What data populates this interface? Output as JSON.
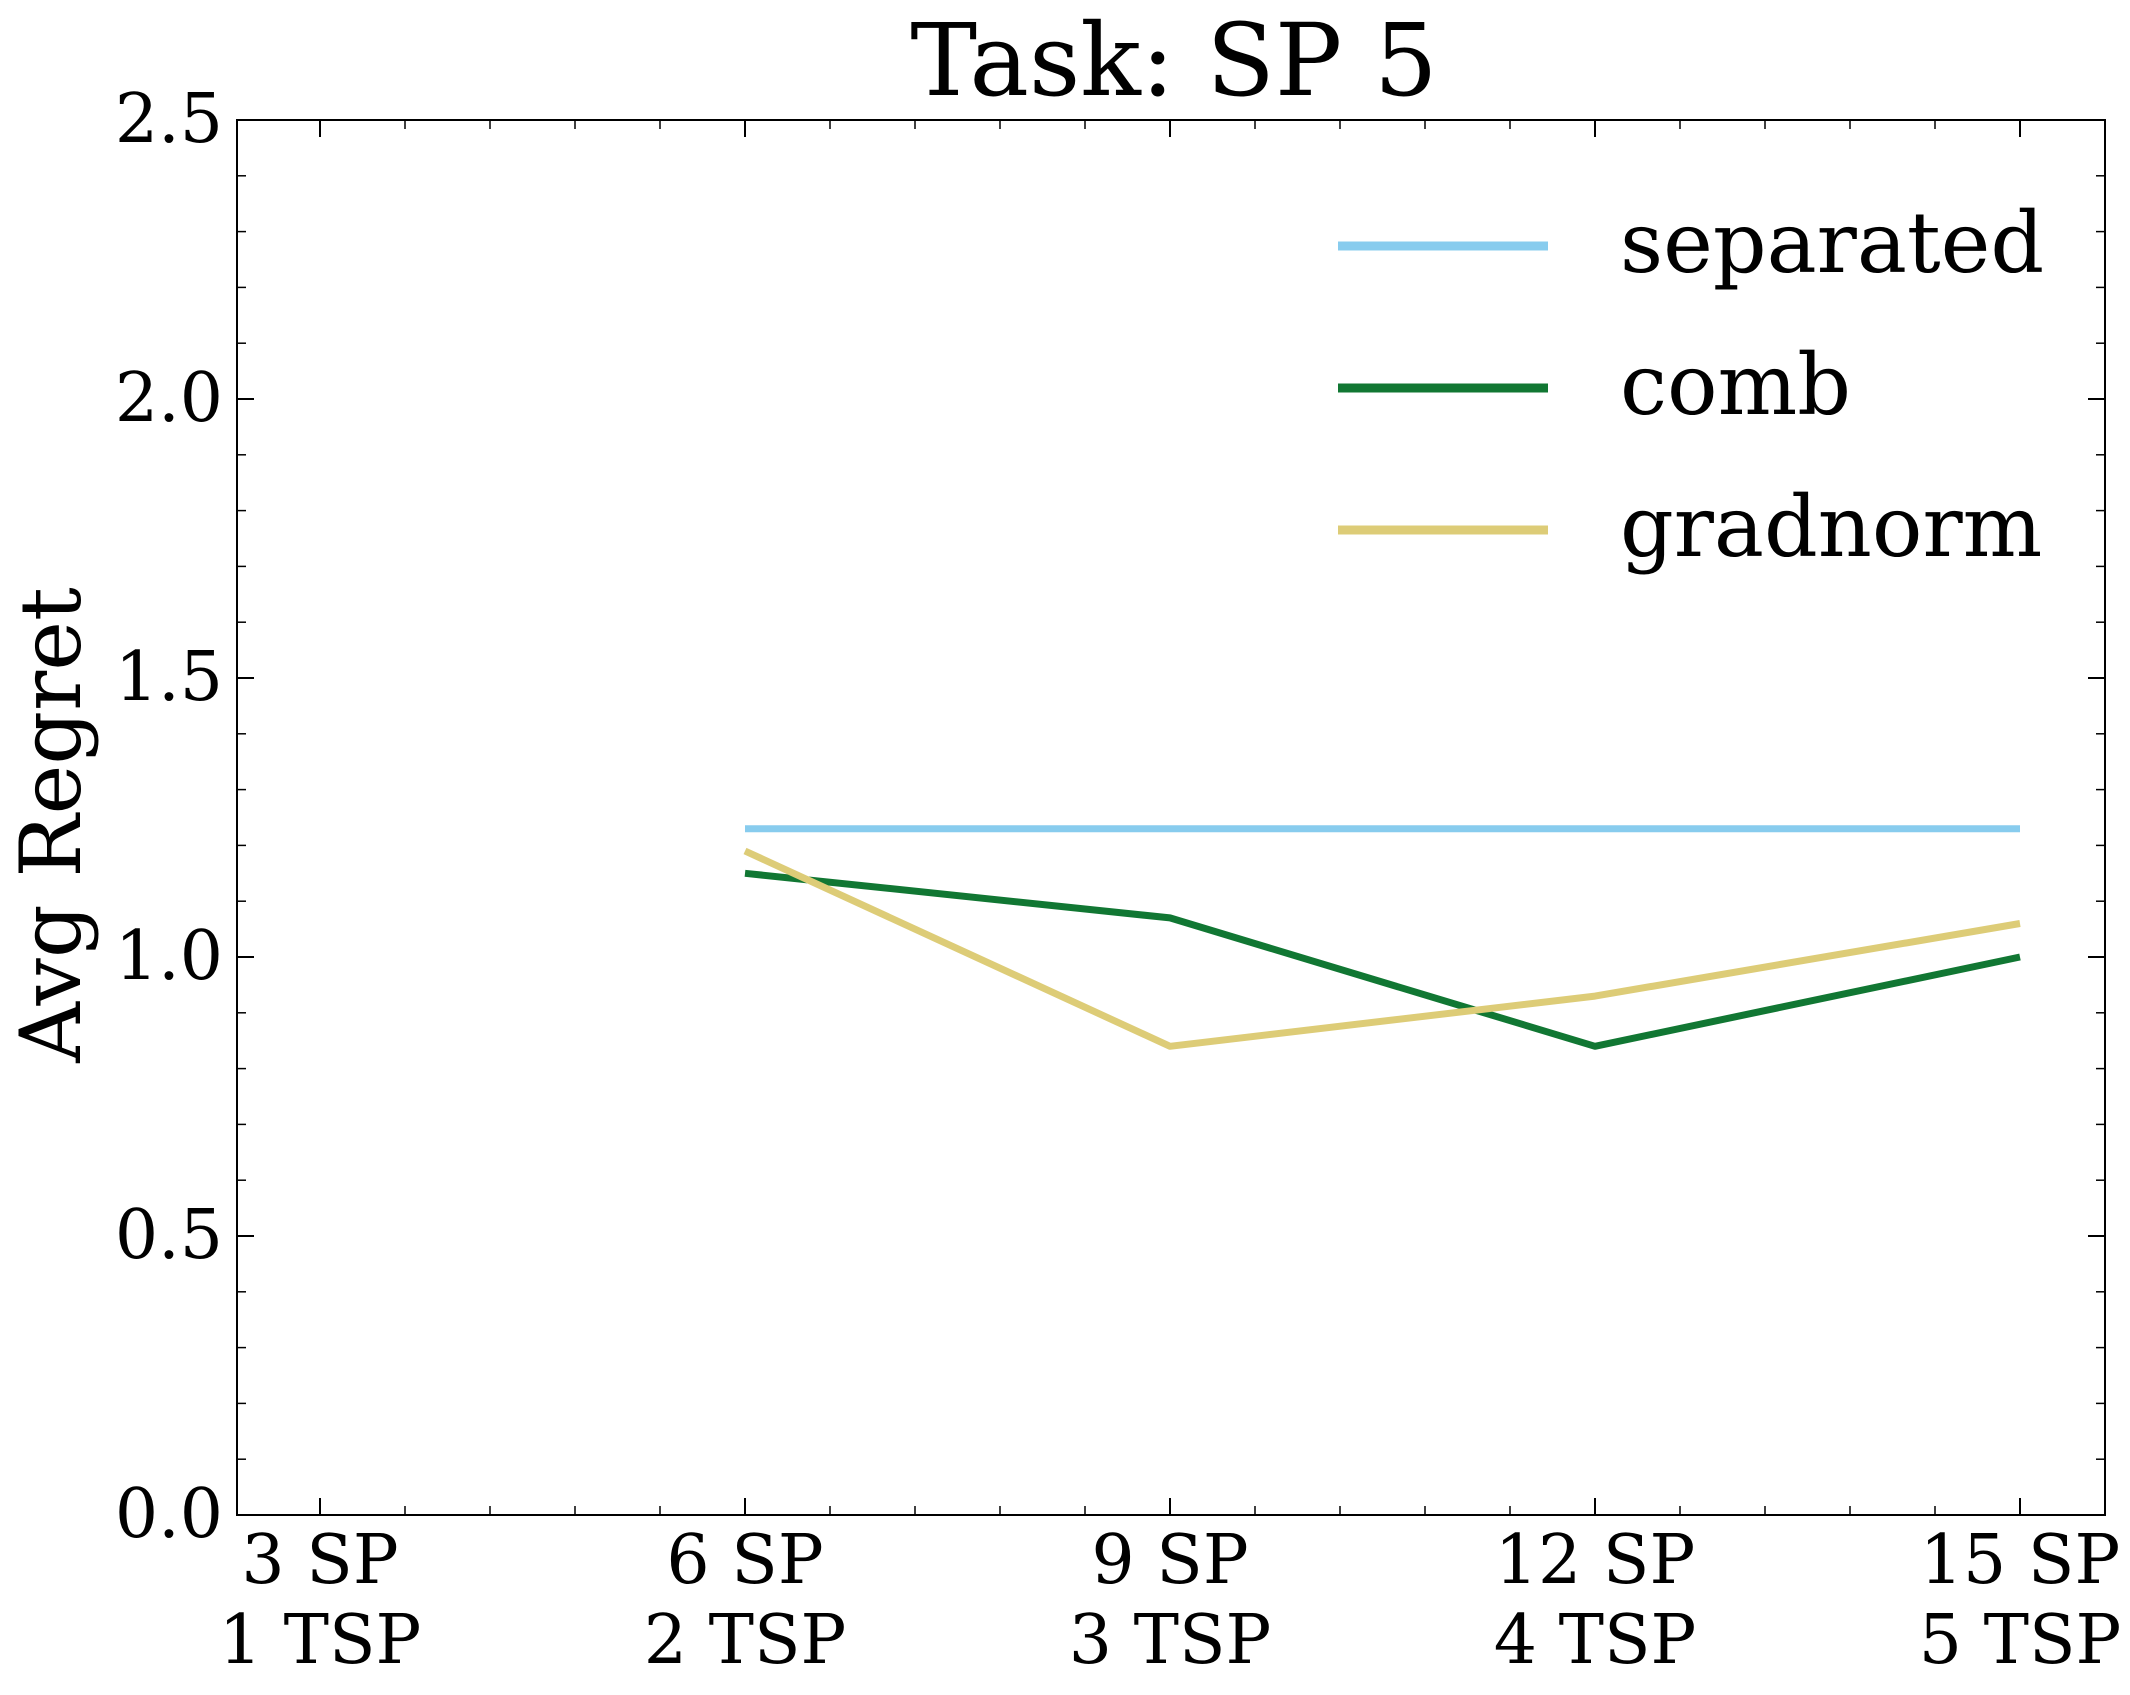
{
  "chart_data": {
    "type": "line",
    "title": "Task: SP 5",
    "xlabel": "",
    "ylabel": "Avg Regret",
    "categories": [
      [
        "3 SP",
        "1 TSP"
      ],
      [
        "6 SP",
        "2 TSP"
      ],
      [
        "9 SP",
        "3 TSP"
      ],
      [
        "12 SP",
        "4 TSP"
      ],
      [
        "15 SP",
        "5 TSP"
      ]
    ],
    "ylim": [
      0.0,
      2.5
    ],
    "yticks": [
      "0.0",
      "0.5",
      "1.0",
      "1.5",
      "2.0",
      "2.5"
    ],
    "legend_position": "top-right",
    "grid": false,
    "series": [
      {
        "name": "separated",
        "color": "#88CCEE",
        "values": [
          null,
          1.23,
          1.23,
          1.23,
          1.23
        ]
      },
      {
        "name": "comb",
        "color": "#117733",
        "values": [
          null,
          1.15,
          1.07,
          0.84,
          1.0
        ]
      },
      {
        "name": "gradnorm",
        "color": "#DDCC77",
        "values": [
          null,
          1.19,
          0.84,
          0.93,
          1.06
        ]
      }
    ]
  }
}
